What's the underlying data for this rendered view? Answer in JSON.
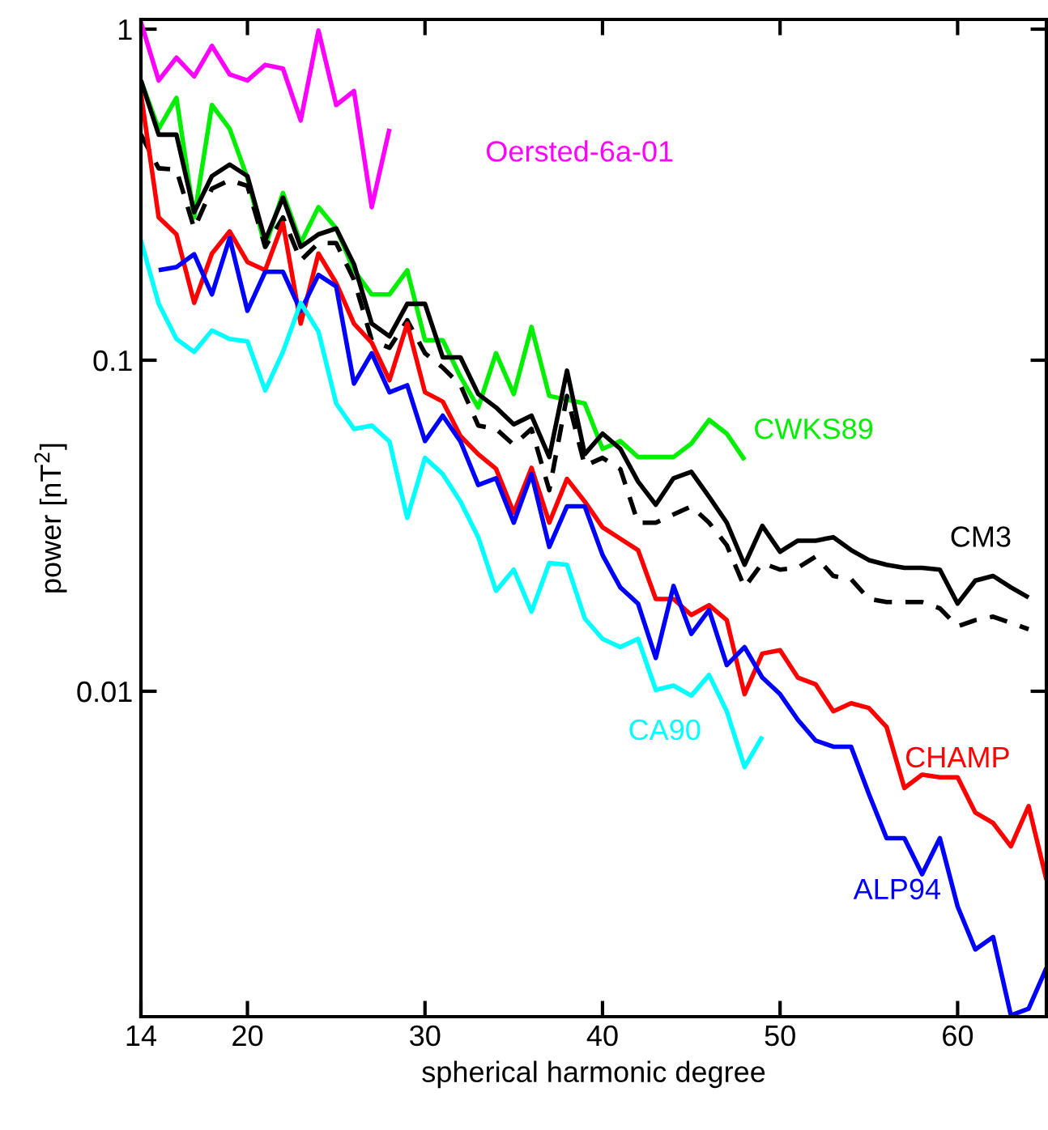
{
  "chart_data": {
    "type": "line",
    "xlabel": "spherical harmonic degree",
    "ylabel": "power [nT$^{2}$]",
    "log": "y",
    "xlim": [
      14,
      65
    ],
    "ylim": [
      0.00104,
      1.07
    ],
    "xticks": [
      14,
      20,
      30,
      40,
      50,
      60
    ],
    "yticks": [
      {
        "value": 1,
        "label": "1"
      },
      {
        "value": 0.1,
        "label": "0.1"
      },
      {
        "value": 0.01,
        "label": "0.01"
      }
    ],
    "series": [
      {
        "name": "Oersted-6a-01",
        "color": "#ff00ff",
        "x": [
          14,
          15,
          16,
          17,
          18,
          19,
          20,
          21,
          22,
          23,
          24,
          25,
          26,
          27,
          28
        ],
        "values": [
          1.05,
          0.7,
          0.82,
          0.72,
          0.89,
          0.73,
          0.7,
          0.78,
          0.76,
          0.53,
          0.99,
          0.59,
          0.65,
          0.29,
          0.5
        ]
      },
      {
        "name": "CWKS89",
        "color": "#00ee00",
        "x": [
          14,
          15,
          16,
          17,
          18,
          19,
          20,
          21,
          22,
          23,
          24,
          25,
          26,
          27,
          28,
          29,
          30,
          31,
          32,
          33,
          34,
          35,
          36,
          37,
          38,
          39,
          40,
          41,
          42,
          43,
          44,
          45,
          46,
          47,
          48
        ],
        "values": [
          0.7,
          0.5,
          0.62,
          0.27,
          0.59,
          0.5,
          0.355,
          0.22,
          0.32,
          0.226,
          0.29,
          0.25,
          0.187,
          0.158,
          0.158,
          0.187,
          0.115,
          0.115,
          0.089,
          0.072,
          0.105,
          0.079,
          0.126,
          0.078,
          0.076,
          0.074,
          0.054,
          0.057,
          0.051,
          0.051,
          0.051,
          0.056,
          0.066,
          0.06,
          0.05
        ]
      },
      {
        "name": "CM3",
        "color": "#000000",
        "line_style": "solid",
        "x": [
          14,
          15,
          16,
          17,
          18,
          19,
          20,
          21,
          22,
          23,
          24,
          25,
          26,
          27,
          28,
          29,
          30,
          31,
          32,
          33,
          34,
          35,
          36,
          37,
          38,
          39,
          40,
          41,
          42,
          43,
          44,
          45,
          46,
          47,
          48,
          49,
          50,
          51,
          52,
          53,
          54,
          55,
          56,
          57,
          58,
          59,
          60,
          61,
          62,
          63,
          64
        ],
        "values": [
          0.7,
          0.48,
          0.48,
          0.28,
          0.36,
          0.39,
          0.36,
          0.23,
          0.31,
          0.22,
          0.24,
          0.25,
          0.195,
          0.129,
          0.118,
          0.148,
          0.148,
          0.102,
          0.102,
          0.079,
          0.072,
          0.064,
          0.068,
          0.051,
          0.093,
          0.052,
          0.06,
          0.054,
          0.043,
          0.0366,
          0.044,
          0.046,
          0.0387,
          0.0323,
          0.0241,
          0.0316,
          0.0264,
          0.0285,
          0.0285,
          0.0292,
          0.0267,
          0.0249,
          0.0241,
          0.0236,
          0.0236,
          0.0233,
          0.0184,
          0.0216,
          0.0223,
          0.0206,
          0.0192
        ]
      },
      {
        "color": "#000000",
        "line_style": "dashed",
        "x": [
          14,
          15,
          16,
          17,
          18,
          19,
          20,
          21,
          22,
          23,
          24,
          25,
          26,
          27,
          28,
          29,
          30,
          31,
          32,
          33,
          34,
          35,
          36,
          37,
          38,
          39,
          40,
          41,
          42,
          43,
          44,
          45,
          46,
          47,
          48,
          49,
          50,
          51,
          52,
          53,
          54,
          55,
          56,
          57,
          58,
          59,
          60,
          61,
          62,
          63,
          64
        ],
        "values": [
          0.48,
          0.38,
          0.376,
          0.25,
          0.33,
          0.35,
          0.336,
          0.22,
          0.27,
          0.2,
          0.226,
          0.226,
          0.175,
          0.115,
          0.109,
          0.132,
          0.105,
          0.095,
          0.084,
          0.0635,
          0.062,
          0.0555,
          0.062,
          0.0405,
          0.078,
          0.048,
          0.0507,
          0.0469,
          0.0323,
          0.0323,
          0.0342,
          0.0362,
          0.0323,
          0.0276,
          0.0206,
          0.0244,
          0.0233,
          0.0236,
          0.0255,
          0.0223,
          0.0218,
          0.019,
          0.0186,
          0.0186,
          0.0186,
          0.0178,
          0.0157,
          0.0164,
          0.0168,
          0.0161,
          0.0154
        ]
      },
      {
        "name": "CHAMP",
        "color": "#ff0000",
        "x": [
          14,
          15,
          16,
          17,
          18,
          19,
          20,
          21,
          22,
          23,
          24,
          25,
          26,
          27,
          28,
          29,
          30,
          31,
          32,
          33,
          34,
          35,
          36,
          37,
          38,
          39,
          40,
          41,
          42,
          43,
          44,
          45,
          46,
          47,
          48,
          49,
          50,
          51,
          52,
          53,
          54,
          55,
          56,
          57,
          58,
          59,
          60,
          61,
          62,
          63,
          64,
          65
        ],
        "values": [
          0.64,
          0.27,
          0.24,
          0.149,
          0.21,
          0.245,
          0.198,
          0.187,
          0.26,
          0.129,
          0.21,
          0.171,
          0.129,
          0.113,
          0.087,
          0.129,
          0.08,
          0.075,
          0.059,
          0.052,
          0.047,
          0.0346,
          0.0473,
          0.0323,
          0.0438,
          0.0374,
          0.0313,
          0.0289,
          0.0267,
          0.019,
          0.019,
          0.017,
          0.0182,
          0.0164,
          0.0098,
          0.013,
          0.0133,
          0.011,
          0.0105,
          0.0087,
          0.0092,
          0.0089,
          0.0078,
          0.0051,
          0.0056,
          0.0055,
          0.0055,
          0.0043,
          0.004,
          0.0034,
          0.0045,
          0.0027
        ]
      },
      {
        "name": "ALP94",
        "color": "#0000ff",
        "x": [
          15,
          16,
          17,
          18,
          19,
          20,
          21,
          22,
          23,
          24,
          25,
          26,
          27,
          28,
          29,
          30,
          31,
          32,
          33,
          34,
          35,
          36,
          37,
          38,
          39,
          40,
          41,
          42,
          43,
          44,
          45,
          46,
          47,
          48,
          49,
          50,
          51,
          52,
          53,
          54,
          55,
          56,
          57,
          58,
          59,
          60,
          61,
          62,
          63,
          64,
          65
        ],
        "values": [
          0.187,
          0.191,
          0.209,
          0.158,
          0.234,
          0.141,
          0.185,
          0.185,
          0.141,
          0.181,
          0.167,
          0.085,
          0.105,
          0.08,
          0.084,
          0.057,
          0.068,
          0.0568,
          0.042,
          0.044,
          0.0323,
          0.0453,
          0.0273,
          0.0362,
          0.0362,
          0.0258,
          0.0206,
          0.0184,
          0.0126,
          0.0208,
          0.0149,
          0.0176,
          0.012,
          0.0136,
          0.011,
          0.0098,
          0.0082,
          0.0071,
          0.0068,
          0.0068,
          0.0049,
          0.0036,
          0.0036,
          0.0028,
          0.0036,
          0.00224,
          0.00166,
          0.00181,
          0.00105,
          0.0011,
          0.00146
        ]
      },
      {
        "name": "CA90",
        "color": "#00ffff",
        "x": [
          14,
          15,
          16,
          17,
          18,
          19,
          20,
          21,
          22,
          23,
          24,
          25,
          26,
          27,
          28,
          29,
          30,
          31,
          32,
          33,
          34,
          35,
          36,
          37,
          38,
          39,
          40,
          41,
          42,
          43,
          44,
          45,
          46,
          47,
          48,
          49
        ],
        "values": [
          0.23,
          0.148,
          0.116,
          0.106,
          0.123,
          0.116,
          0.114,
          0.081,
          0.106,
          0.149,
          0.122,
          0.074,
          0.062,
          0.0635,
          0.0568,
          0.0334,
          0.0507,
          0.0453,
          0.0374,
          0.0292,
          0.0201,
          0.0233,
          0.0174,
          0.0244,
          0.0241,
          0.0166,
          0.0144,
          0.0136,
          0.0144,
          0.0101,
          0.0104,
          0.0097,
          0.0112,
          0.0087,
          0.0059,
          0.0073
        ]
      }
    ]
  }
}
